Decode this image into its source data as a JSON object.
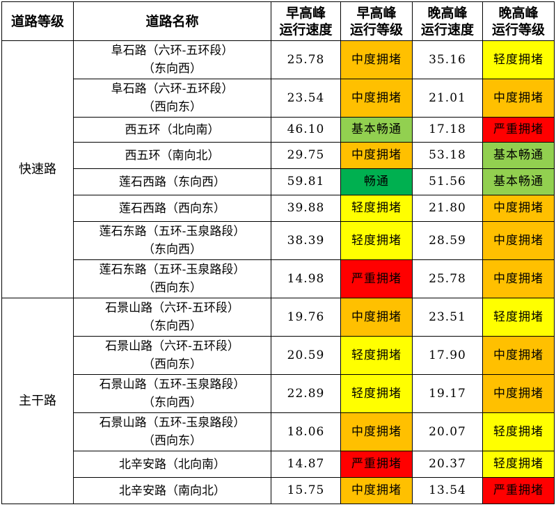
{
  "colors": {
    "畅通": "#00b050",
    "基本畅通": "#92d050",
    "轻度拥堵": "#ffff00",
    "中度拥堵": "#ffc000",
    "严重拥堵": "#ff0000"
  },
  "header": {
    "grade": "道路等级",
    "name": "道路名称",
    "am_speed": [
      "早高峰",
      "运行速度"
    ],
    "am_level": [
      "早高峰",
      "运行等级"
    ],
    "pm_speed": [
      "晚高峰",
      "运行速度"
    ],
    "pm_level": [
      "晚高峰",
      "运行等级"
    ]
  },
  "groups": [
    {
      "grade": "快速路"
    },
    {
      "grade": "主干路"
    }
  ],
  "rows": [
    {
      "name": [
        "阜石路（六环-五环段）",
        "（东向西）"
      ],
      "am_speed": "25.78",
      "am_level": "中度拥堵",
      "pm_speed": "35.16",
      "pm_level": "轻度拥堵"
    },
    {
      "name": [
        "阜石路（六环-五环段）",
        "（西向东）"
      ],
      "am_speed": "23.54",
      "am_level": "中度拥堵",
      "pm_speed": "21.01",
      "pm_level": "中度拥堵"
    },
    {
      "name": [
        "西五环（北向南）"
      ],
      "am_speed": "46.10",
      "am_level": "基本畅通",
      "pm_speed": "17.18",
      "pm_level": "严重拥堵"
    },
    {
      "name": [
        "西五环（南向北）"
      ],
      "am_speed": "29.75",
      "am_level": "中度拥堵",
      "pm_speed": "53.18",
      "pm_level": "基本畅通"
    },
    {
      "name": [
        "莲石西路（东向西）"
      ],
      "am_speed": "59.81",
      "am_level": "畅通",
      "pm_speed": "51.56",
      "pm_level": "基本畅通"
    },
    {
      "name": [
        "莲石西路（西向东）"
      ],
      "am_speed": "39.88",
      "am_level": "轻度拥堵",
      "pm_speed": "21.80",
      "pm_level": "中度拥堵"
    },
    {
      "name": [
        "莲石东路（五环-玉泉路段）",
        "（东向西）"
      ],
      "am_speed": "38.39",
      "am_level": "轻度拥堵",
      "pm_speed": "28.59",
      "pm_level": "中度拥堵"
    },
    {
      "name": [
        "莲石东路（五环-玉泉路段）",
        "（西向东）"
      ],
      "am_speed": "14.98",
      "am_level": "严重拥堵",
      "pm_speed": "25.78",
      "pm_level": "中度拥堵"
    },
    {
      "name": [
        "石景山路（六环-五环段）",
        "（东向西）"
      ],
      "am_speed": "19.76",
      "am_level": "中度拥堵",
      "pm_speed": "23.51",
      "pm_level": "轻度拥堵"
    },
    {
      "name": [
        "石景山路（六环-五环段）",
        "（西向东）"
      ],
      "am_speed": "20.59",
      "am_level": "轻度拥堵",
      "pm_speed": "17.90",
      "pm_level": "中度拥堵"
    },
    {
      "name": [
        "石景山路（五环-玉泉路段）",
        "（东向西）"
      ],
      "am_speed": "22.89",
      "am_level": "轻度拥堵",
      "pm_speed": "19.17",
      "pm_level": "中度拥堵"
    },
    {
      "name": [
        "石景山路（五环-玉泉路段）",
        "（西向东）"
      ],
      "am_speed": "18.06",
      "am_level": "中度拥堵",
      "pm_speed": "20.07",
      "pm_level": "轻度拥堵"
    },
    {
      "name": [
        "北辛安路（北向南）"
      ],
      "am_speed": "14.87",
      "am_level": "严重拥堵",
      "pm_speed": "20.37",
      "pm_level": "轻度拥堵"
    },
    {
      "name": [
        "北辛安路（南向北）"
      ],
      "am_speed": "15.75",
      "am_level": "中度拥堵",
      "pm_speed": "13.54",
      "pm_level": "严重拥堵"
    }
  ]
}
